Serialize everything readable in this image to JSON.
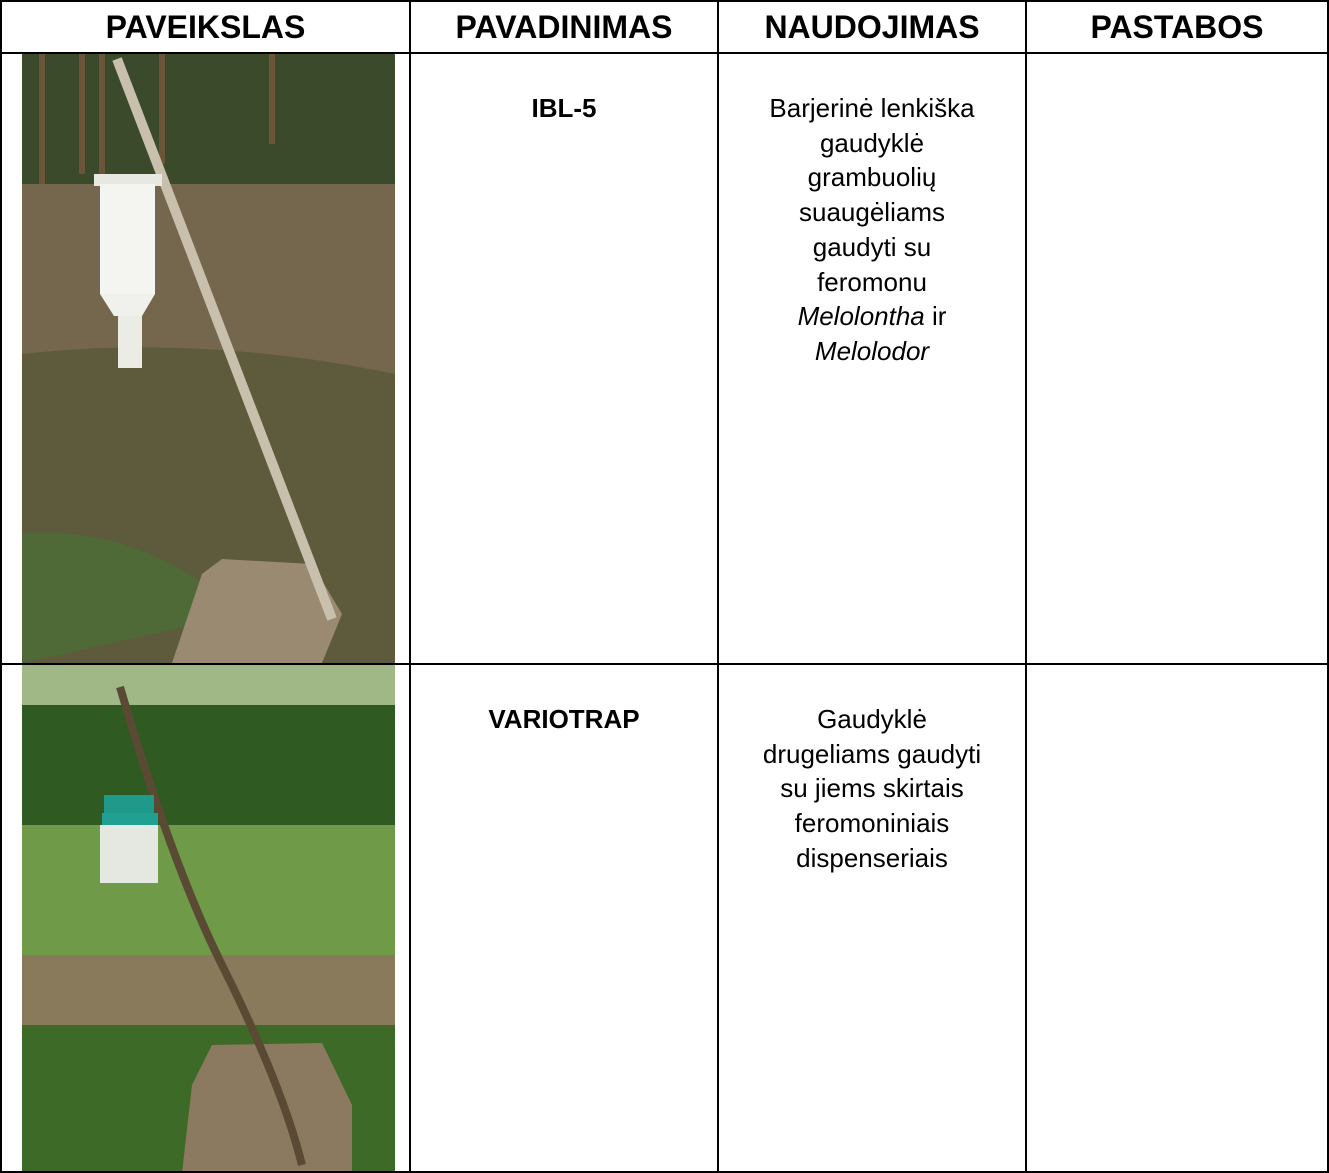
{
  "table": {
    "header": [
      "PAVEIKSLAS",
      "PAVADINIMAS",
      "NAUDOJIMAS",
      "PASTABOS"
    ],
    "rows": [
      {
        "name": "IBL-5",
        "usage": [
          [
            {
              "text": "Barjerinė lenkiška",
              "italic": false
            }
          ],
          [
            {
              "text": "gaudyklė",
              "italic": false
            }
          ],
          [
            {
              "text": "grambuolių",
              "italic": false
            }
          ],
          [
            {
              "text": "suaugėliams",
              "italic": false
            }
          ],
          [
            {
              "text": "gaudyti su",
              "italic": false
            }
          ],
          [
            {
              "text": "feromonu",
              "italic": false
            }
          ],
          [
            {
              "text": "Melolontha",
              "italic": true
            },
            {
              "text": " ir",
              "italic": false
            }
          ],
          [
            {
              "text": "Melolodor",
              "italic": true
            }
          ]
        ]
      },
      {
        "name": "VARIOTRAP",
        "usage": [
          [
            {
              "text": "Gaudyklė",
              "italic": false
            }
          ],
          [
            {
              "text": "drugeliams gaudyti",
              "italic": false
            }
          ],
          [
            {
              "text": "su jiems skirtais",
              "italic": false
            }
          ],
          [
            {
              "text": "feromoniniais",
              "italic": false
            }
          ],
          [
            {
              "text": "dispenseriais",
              "italic": false
            }
          ]
        ]
      }
    ]
  }
}
